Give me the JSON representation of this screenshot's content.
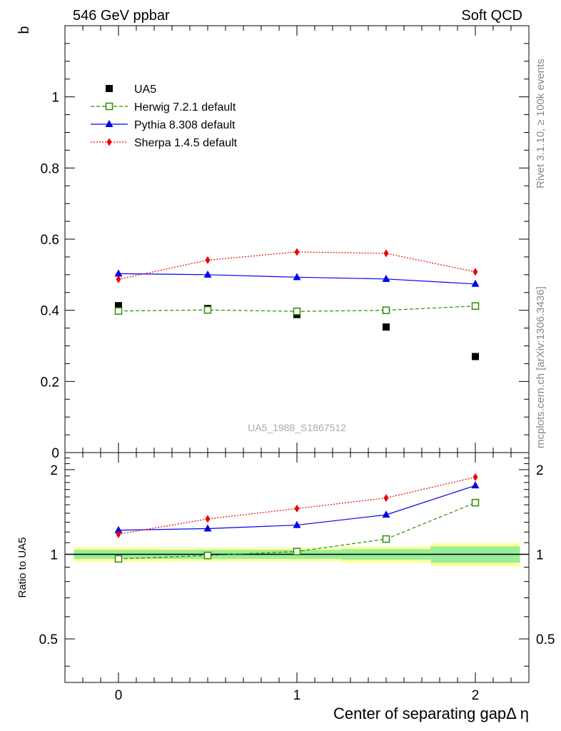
{
  "header": {
    "left_title": "546 GeV ppbar",
    "right_title": "Soft QCD"
  },
  "side_text": {
    "rivet": "Rivet 3.1.10, ≥ 100k events",
    "mcplots": "mcplots.cern.ch [arXiv:1306.3436]"
  },
  "watermark": "UA5_1988_S1867512",
  "chart_data": {
    "type": "scatter",
    "xlabel": "Center of separating gapΔ η",
    "ylabel": "b",
    "ratio_ylabel": "Ratio to UA5",
    "xlim": [
      -0.3,
      2.3
    ],
    "ylim": [
      0,
      1.2
    ],
    "ratio_ylim": [
      0.35,
      2.3
    ],
    "grid": false,
    "legend_position": "top-left",
    "x_ticks": [
      "0",
      "1",
      "2"
    ],
    "main_y_ticks": [
      "0",
      "0.2",
      "0.4",
      "0.6",
      "0.8",
      "1"
    ],
    "ratio_y_ticks": [
      "0.5",
      "1",
      "2"
    ],
    "x": [
      0,
      0.5,
      1.0,
      1.5,
      2.0
    ],
    "series": [
      {
        "name": "UA5",
        "color": "#000000",
        "marker": "square-filled",
        "line": "none",
        "values": [
          0.413,
          0.405,
          0.388,
          0.353,
          0.27
        ]
      },
      {
        "name": "Herwig 7.2.1 default",
        "color": "#2e8b00",
        "marker": "square-open",
        "line": "dashed",
        "values": [
          0.398,
          0.401,
          0.397,
          0.4,
          0.412
        ]
      },
      {
        "name": "Pythia 8.308 default",
        "color": "#0000ee",
        "marker": "triangle-filled",
        "line": "solid",
        "values": [
          0.503,
          0.5,
          0.493,
          0.488,
          0.474
        ]
      },
      {
        "name": "Sherpa 1.4.5 default",
        "color": "#ee0000",
        "marker": "diamond-filled",
        "line": "dotted",
        "values": [
          0.487,
          0.541,
          0.564,
          0.56,
          0.508
        ]
      }
    ],
    "ratio_series": [
      {
        "name": "Herwig 7.2.1 default",
        "values": [
          0.963,
          0.99,
          1.023,
          1.133,
          1.526
        ]
      },
      {
        "name": "Pythia 8.308 default",
        "values": [
          1.218,
          1.234,
          1.27,
          1.382,
          1.756
        ]
      },
      {
        "name": "Sherpa 1.4.5 default",
        "values": [
          1.179,
          1.336,
          1.454,
          1.586,
          1.881
        ]
      }
    ],
    "uncertainty_bands": {
      "x_edges": [
        -0.25,
        0.25,
        0.75,
        1.25,
        1.75,
        2.25
      ],
      "inner": [
        [
          0.963,
          1.037
        ],
        [
          0.963,
          1.037
        ],
        [
          0.963,
          1.037
        ],
        [
          0.957,
          1.043
        ],
        [
          0.933,
          1.067
        ]
      ],
      "outer": [
        [
          0.94,
          1.06
        ],
        [
          0.945,
          1.055
        ],
        [
          0.945,
          1.055
        ],
        [
          0.935,
          1.065
        ],
        [
          0.905,
          1.095
        ]
      ],
      "inner_color": "#99ee99",
      "outer_color": "#ffff99"
    }
  }
}
